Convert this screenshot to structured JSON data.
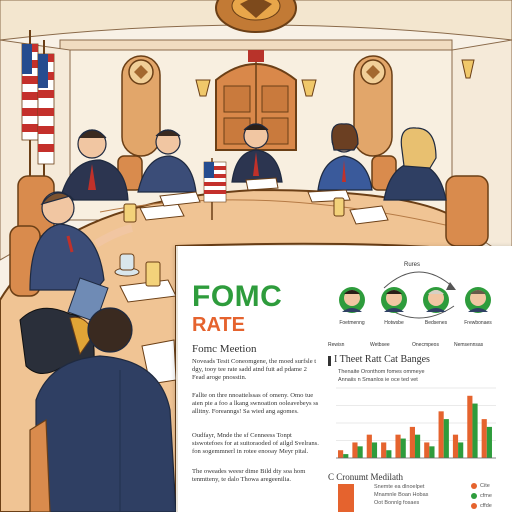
{
  "panel": {
    "title": "FOMC",
    "subtitle": "RATE",
    "section_heading": "Fomc Meetion",
    "paragraphs": [
      "Noveads Tesit Coneomgene, the moed surfsle t dgy, tooy tee rate sadd atnd fuit ad pdame 2 Fead aroge pnosstin.",
      "Fallte on thre nnoattelssas of omeny. Omo tue aien pie a foo a lkang swnoation ooleavebeys ss allitny. Foreanngs! Sa wied ang agomes.",
      "Oudfayr, Mnde the sf Cenneess Tonpt siswotefoes for at suitoraoded of ailgd Svelrans. fon sogemmnerl in rotee enooay Meyr pital.",
      "The oweades weesr dime Bild dty soa hom tenmtteny, te dalo Thowa aregeenilia."
    ],
    "chart_title": "I Theet Ratt Cat Banges",
    "legend_lines": [
      "Thenaite Oronthom fomes ommeye",
      "Annaiis n Smanlos ie oce ted vet"
    ],
    "second_heading": "C Cronumt Medilath",
    "second_lines": [
      "Snemte ea dlnoelpet",
      "Mnamnle  Boan Hobas",
      "Oot Bonnlg fosaes"
    ],
    "members_label": "Rures",
    "members": [
      "Foetmenng",
      "Hotwsbe",
      "Bedsenes",
      "Frewbonaes"
    ],
    "column_heads": [
      "Rewisn",
      "Wetbsee",
      "Onecmpeos",
      "Nemsennsas"
    ],
    "dot_labels": [
      "Cite",
      "cfme",
      "cffde"
    ]
  },
  "chart_data": {
    "type": "bar",
    "title": "I Theet Ratt Cat Banges",
    "series": [
      {
        "values": [
          1,
          2,
          3,
          2,
          3,
          4,
          2,
          6,
          3,
          8,
          5
        ]
      },
      {
        "values": [
          0.5,
          1.5,
          2,
          1,
          2.5,
          3,
          1.5,
          5,
          2,
          7,
          4
        ]
      }
    ],
    "ylim": [
      0,
      9
    ]
  },
  "colors": {
    "accent_green": "#2e9c3c",
    "accent_orange": "#e5632e",
    "wall": "#f8f1e6",
    "table": "#f0c494",
    "suit": "#2f3f63"
  },
  "icons": [
    "us-flag-icon",
    "eagle-seal-icon",
    "orbit-arrow-icon"
  ]
}
